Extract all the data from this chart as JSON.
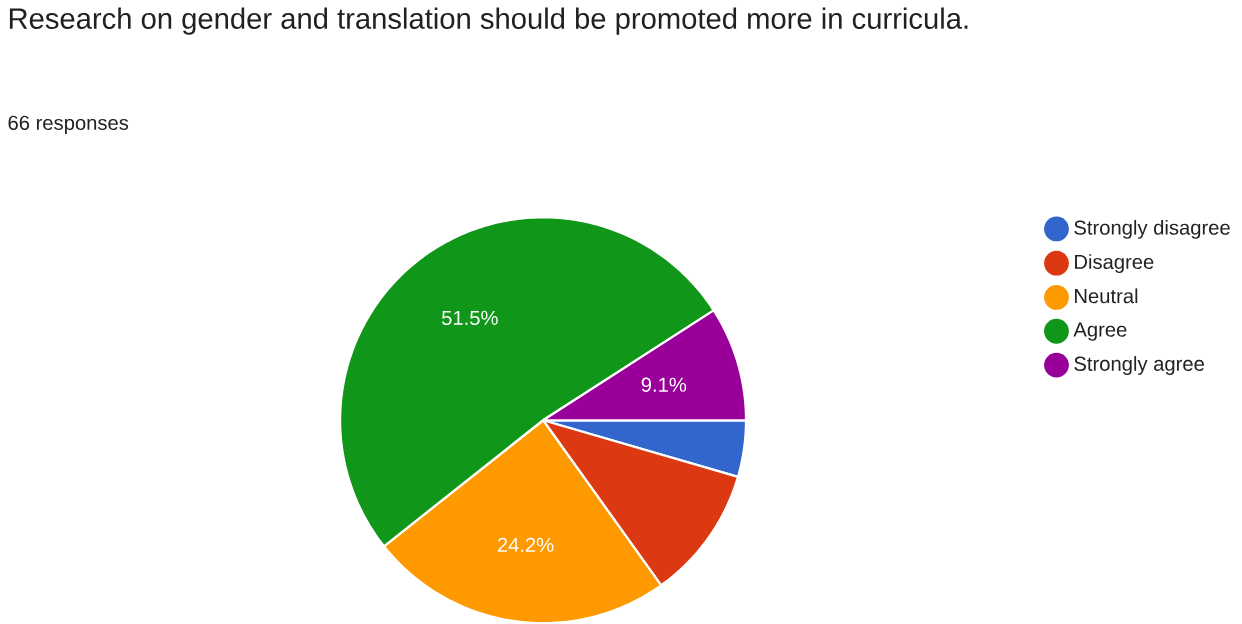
{
  "chart_data": {
    "type": "pie",
    "title": "Research on gender and translation should be promoted more in curricula.",
    "subtitle": "66 responses",
    "categories": [
      "Strongly disagree",
      "Disagree",
      "Neutral",
      "Agree",
      "Strongly agree"
    ],
    "values": [
      4.5,
      10.6,
      24.2,
      51.5,
      9.1
    ],
    "colors": [
      "#3366cc",
      "#dc3912",
      "#ff9900",
      "#109618",
      "#990099"
    ],
    "value_labels": [
      null,
      null,
      "24.2%",
      "51.5%",
      "9.1%"
    ],
    "legend": "right"
  }
}
